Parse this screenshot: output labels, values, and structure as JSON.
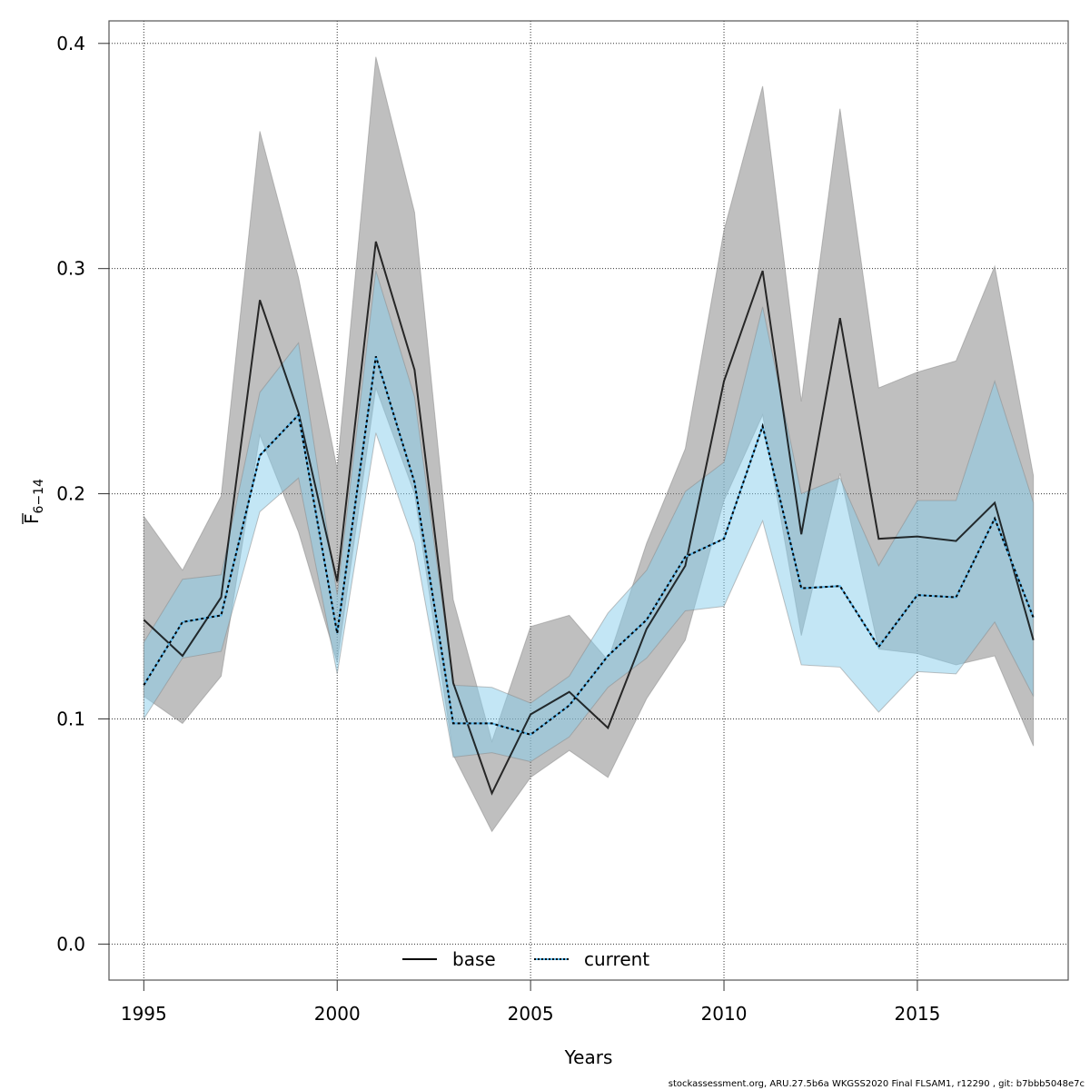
{
  "chart_data": {
    "type": "line",
    "title": "",
    "xlabel": "Years",
    "ylabel": "F",
    "ylabel_subscript": "6−14",
    "xlim": [
      1994.1,
      2018.9
    ],
    "ylim": [
      -0.016,
      0.41
    ],
    "grid": true,
    "x_ticks": [
      1995,
      2000,
      2005,
      2010,
      2015
    ],
    "y_ticks": [
      0.0,
      0.1,
      0.2,
      0.3,
      0.4
    ],
    "y_tick_labels": [
      "0.0",
      "0.1",
      "0.2",
      "0.3",
      "0.4"
    ],
    "legend": {
      "placement": "bottom",
      "entries": [
        "base",
        "current"
      ]
    },
    "x": [
      1995,
      1996,
      1997,
      1998,
      1999,
      2000,
      2001,
      2002,
      2003,
      2004,
      2005,
      2006,
      2007,
      2008,
      2009,
      2010,
      2011,
      2012,
      2013,
      2014,
      2015,
      2016,
      2017,
      2018
    ],
    "series": [
      {
        "name": "base",
        "color": "#000000",
        "band_color": "#808080",
        "values": [
          0.144,
          0.128,
          0.154,
          0.286,
          0.236,
          0.161,
          0.312,
          0.255,
          0.116,
          0.067,
          0.102,
          0.112,
          0.096,
          0.14,
          0.168,
          0.25,
          0.299,
          0.182,
          0.278,
          0.18,
          0.181,
          0.179,
          0.196,
          0.135
        ],
        "upper": [
          0.19,
          0.166,
          0.199,
          0.361,
          0.296,
          0.211,
          0.394,
          0.325,
          0.153,
          0.09,
          0.141,
          0.146,
          0.126,
          0.178,
          0.22,
          0.317,
          0.381,
          0.241,
          0.371,
          0.247,
          0.254,
          0.259,
          0.301,
          0.208
        ],
        "lower": [
          0.11,
          0.098,
          0.119,
          0.226,
          0.183,
          0.125,
          0.247,
          0.2,
          0.084,
          0.05,
          0.074,
          0.086,
          0.074,
          0.109,
          0.135,
          0.197,
          0.235,
          0.137,
          0.209,
          0.131,
          0.129,
          0.124,
          0.128,
          0.088
        ]
      },
      {
        "name": "current",
        "color": "#56B4E9",
        "band_color": "#87CEEB",
        "values": [
          0.115,
          0.143,
          0.146,
          0.217,
          0.235,
          0.138,
          0.261,
          0.205,
          0.098,
          0.098,
          0.093,
          0.106,
          0.128,
          0.144,
          0.172,
          0.18,
          0.23,
          0.158,
          0.159,
          0.132,
          0.155,
          0.154,
          0.189,
          0.145
        ],
        "upper": [
          0.134,
          0.162,
          0.164,
          0.245,
          0.267,
          0.155,
          0.299,
          0.243,
          0.115,
          0.114,
          0.107,
          0.119,
          0.147,
          0.166,
          0.201,
          0.214,
          0.283,
          0.2,
          0.207,
          0.168,
          0.197,
          0.197,
          0.25,
          0.196
        ],
        "lower": [
          0.1,
          0.127,
          0.13,
          0.192,
          0.207,
          0.12,
          0.227,
          0.178,
          0.083,
          0.085,
          0.081,
          0.092,
          0.114,
          0.127,
          0.148,
          0.15,
          0.188,
          0.124,
          0.123,
          0.103,
          0.121,
          0.12,
          0.143,
          0.11
        ]
      }
    ]
  },
  "footer": "stockassessment.org, ARU.27.5b6a  WKGSS2020  Final  FLSAM1, r12290 , git: b7bbb5048e7c"
}
